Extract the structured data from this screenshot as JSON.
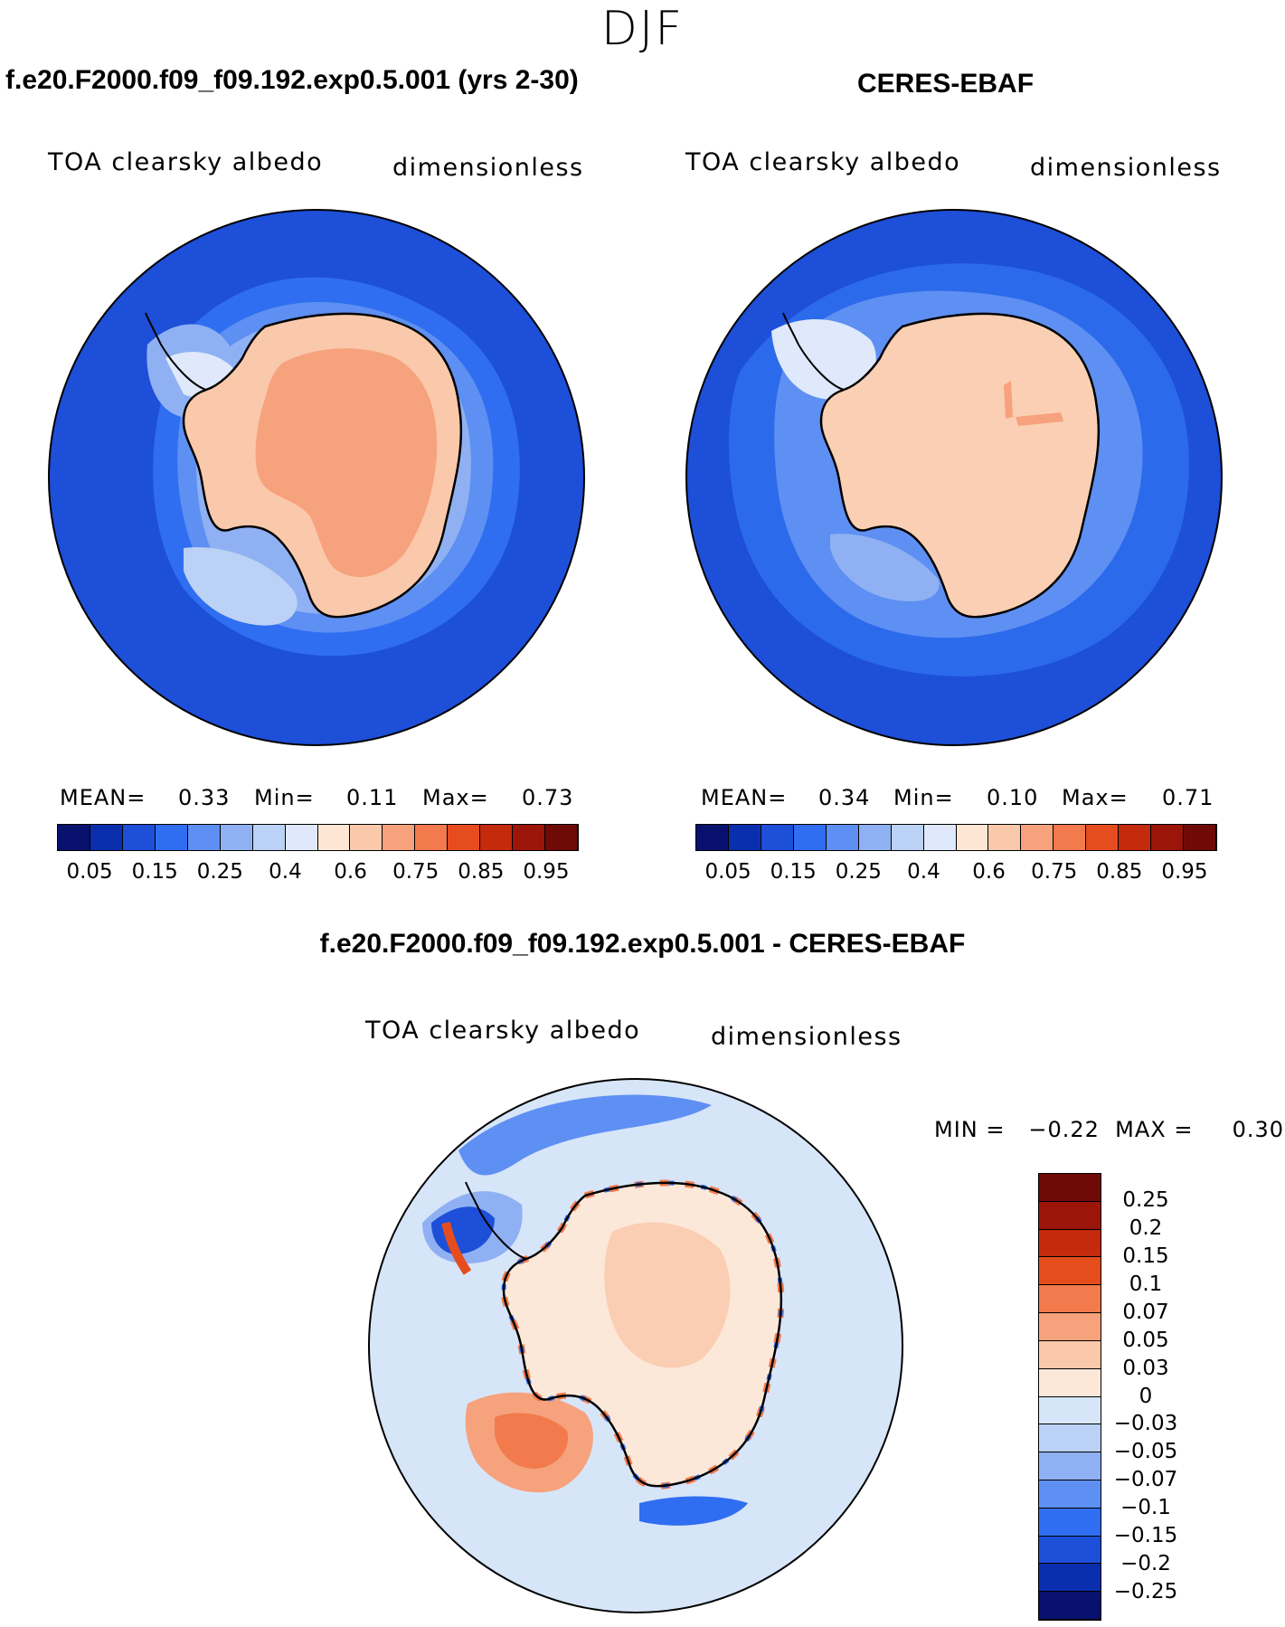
{
  "season": "DJF",
  "colors": {
    "abs_scale": [
      "#08126e",
      "#0a2fae",
      "#1d4fd8",
      "#2f6ef0",
      "#5e8ff2",
      "#8fb1f3",
      "#bcd1f6",
      "#dfe9fb",
      "#fde6d3",
      "#fac8ab",
      "#f6a27c",
      "#f27a4c",
      "#e64d1e",
      "#c42a0c",
      "#9b1509",
      "#6f0a07"
    ],
    "diff_scale": [
      "#08126e",
      "#0a2fae",
      "#1d4fd8",
      "#2f6ef0",
      "#5e8ff2",
      "#8fb1f3",
      "#bcd1f6",
      "#d7e5f9",
      "#fbe8d9",
      "#fac8ab",
      "#f6a27c",
      "#f27a4c",
      "#e64d1e",
      "#c42a0c",
      "#9b1509",
      "#6f0a07"
    ],
    "coastline": "#000000"
  },
  "panels": {
    "model": {
      "title": "f.e20.F2000.f09_f09.192.exp0.5.001 (yrs 2-30)",
      "variable_label": "TOA clearsky albedo",
      "units_label": "dimensionless",
      "mean_label": "MEAN=",
      "mean_value": "0.33",
      "min_label": "Min=",
      "min_value": "0.11",
      "max_label": "Max=",
      "max_value": "0.73",
      "colorbar_ticks": [
        "0.05",
        "0.15",
        "0.25",
        "0.4",
        "0.6",
        "0.75",
        "0.85",
        "0.95"
      ]
    },
    "obs": {
      "title": "CERES-EBAF",
      "variable_label": "TOA clearsky albedo",
      "units_label": "dimensionless",
      "mean_label": "MEAN=",
      "mean_value": "0.34",
      "min_label": "Min=",
      "min_value": "0.10",
      "max_label": "Max=",
      "max_value": "0.71",
      "colorbar_ticks": [
        "0.05",
        "0.15",
        "0.25",
        "0.4",
        "0.6",
        "0.75",
        "0.85",
        "0.95"
      ]
    },
    "diff": {
      "title": "f.e20.F2000.f09_f09.192.exp0.5.001 - CERES-EBAF",
      "variable_label": "TOA clearsky albedo",
      "units_label": "dimensionless",
      "range_text": "MIN =   −0.22  MAX =     0.30",
      "colorbar_ticks": [
        "0.25",
        "0.2",
        "0.15",
        "0.1",
        "0.07",
        "0.05",
        "0.03",
        "0",
        "−0.03",
        "−0.05",
        "−0.07",
        "−0.1",
        "−0.15",
        "−0.2",
        "−0.25"
      ]
    }
  }
}
